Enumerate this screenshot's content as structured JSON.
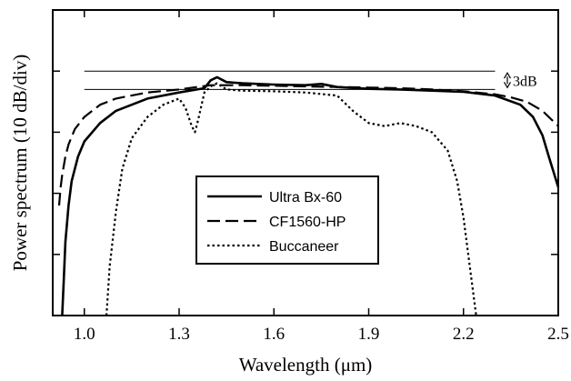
{
  "chart_data": {
    "type": "line",
    "xlabel": "Wavelength (μm)",
    "ylabel": "Power spectrum (10 dB/div)",
    "xlim": [
      0.9,
      2.5
    ],
    "ylim": [
      -40,
      10
    ],
    "x_ticks": [
      1.0,
      1.3,
      1.6,
      1.9,
      2.2,
      2.5
    ],
    "x_tick_labels": [
      "1.0",
      "1.3",
      "1.6",
      "1.9",
      "2.2",
      "2.5"
    ],
    "y_ticks": [
      -30,
      -20,
      -10,
      0
    ],
    "y_tick_labels": [],
    "grid": false,
    "legend_position": "center",
    "annotation": {
      "text": "3dB",
      "reference_levels": [
        0,
        -3
      ]
    },
    "series": [
      {
        "name": "Ultra Bx-60",
        "style": "solid",
        "x": [
          0.93,
          0.935,
          0.94,
          0.95,
          0.96,
          0.98,
          1.0,
          1.05,
          1.1,
          1.2,
          1.3,
          1.38,
          1.4,
          1.42,
          1.45,
          1.5,
          1.6,
          1.7,
          1.75,
          1.8,
          1.9,
          2.0,
          2.1,
          2.2,
          2.3,
          2.38,
          2.42,
          2.45,
          2.47,
          2.5
        ],
        "y": [
          -40,
          -34,
          -28,
          -22,
          -18,
          -14,
          -11.5,
          -8.5,
          -6.5,
          -4.5,
          -3.5,
          -2.8,
          -1.5,
          -1.0,
          -1.8,
          -2.0,
          -2.2,
          -2.3,
          -2.1,
          -2.6,
          -2.9,
          -3.0,
          -3.2,
          -3.4,
          -4.0,
          -5.5,
          -7.5,
          -10.5,
          -14,
          -19
        ]
      },
      {
        "name": "CF1560-HP",
        "style": "dashed",
        "x": [
          0.92,
          0.925,
          0.93,
          0.94,
          0.95,
          0.97,
          1.0,
          1.05,
          1.1,
          1.2,
          1.3,
          1.4,
          1.5,
          1.6,
          1.7,
          1.8,
          1.9,
          2.0,
          2.1,
          2.2,
          2.3,
          2.35,
          2.4,
          2.45,
          2.5
        ],
        "y": [
          -22,
          -19,
          -17,
          -14,
          -12,
          -9.5,
          -7.5,
          -5.5,
          -4.5,
          -3.5,
          -3.0,
          -2.3,
          -2.3,
          -2.4,
          -2.5,
          -2.6,
          -2.7,
          -2.8,
          -3.0,
          -3.3,
          -3.8,
          -4.3,
          -5.0,
          -6.5,
          -9.0
        ]
      },
      {
        "name": "Buccaneer",
        "style": "dotted",
        "x": [
          1.07,
          1.08,
          1.1,
          1.12,
          1.15,
          1.2,
          1.25,
          1.3,
          1.32,
          1.34,
          1.35,
          1.36,
          1.38,
          1.4,
          1.42,
          1.45,
          1.5,
          1.6,
          1.7,
          1.8,
          1.85,
          1.9,
          1.95,
          2.0,
          2.05,
          2.1,
          2.15,
          2.18,
          2.2,
          2.22,
          2.24
        ],
        "y": [
          -40,
          -32,
          -23,
          -16,
          -11,
          -7.5,
          -5.5,
          -4.5,
          -6.0,
          -9.0,
          -10.0,
          -8.0,
          -3.5,
          -2.5,
          -2.0,
          -3.0,
          -3.2,
          -3.3,
          -3.5,
          -4.0,
          -6.5,
          -8.5,
          -9.0,
          -8.5,
          -9.0,
          -10.0,
          -13.0,
          -18.0,
          -24.0,
          -32.0,
          -40.0
        ]
      }
    ]
  }
}
